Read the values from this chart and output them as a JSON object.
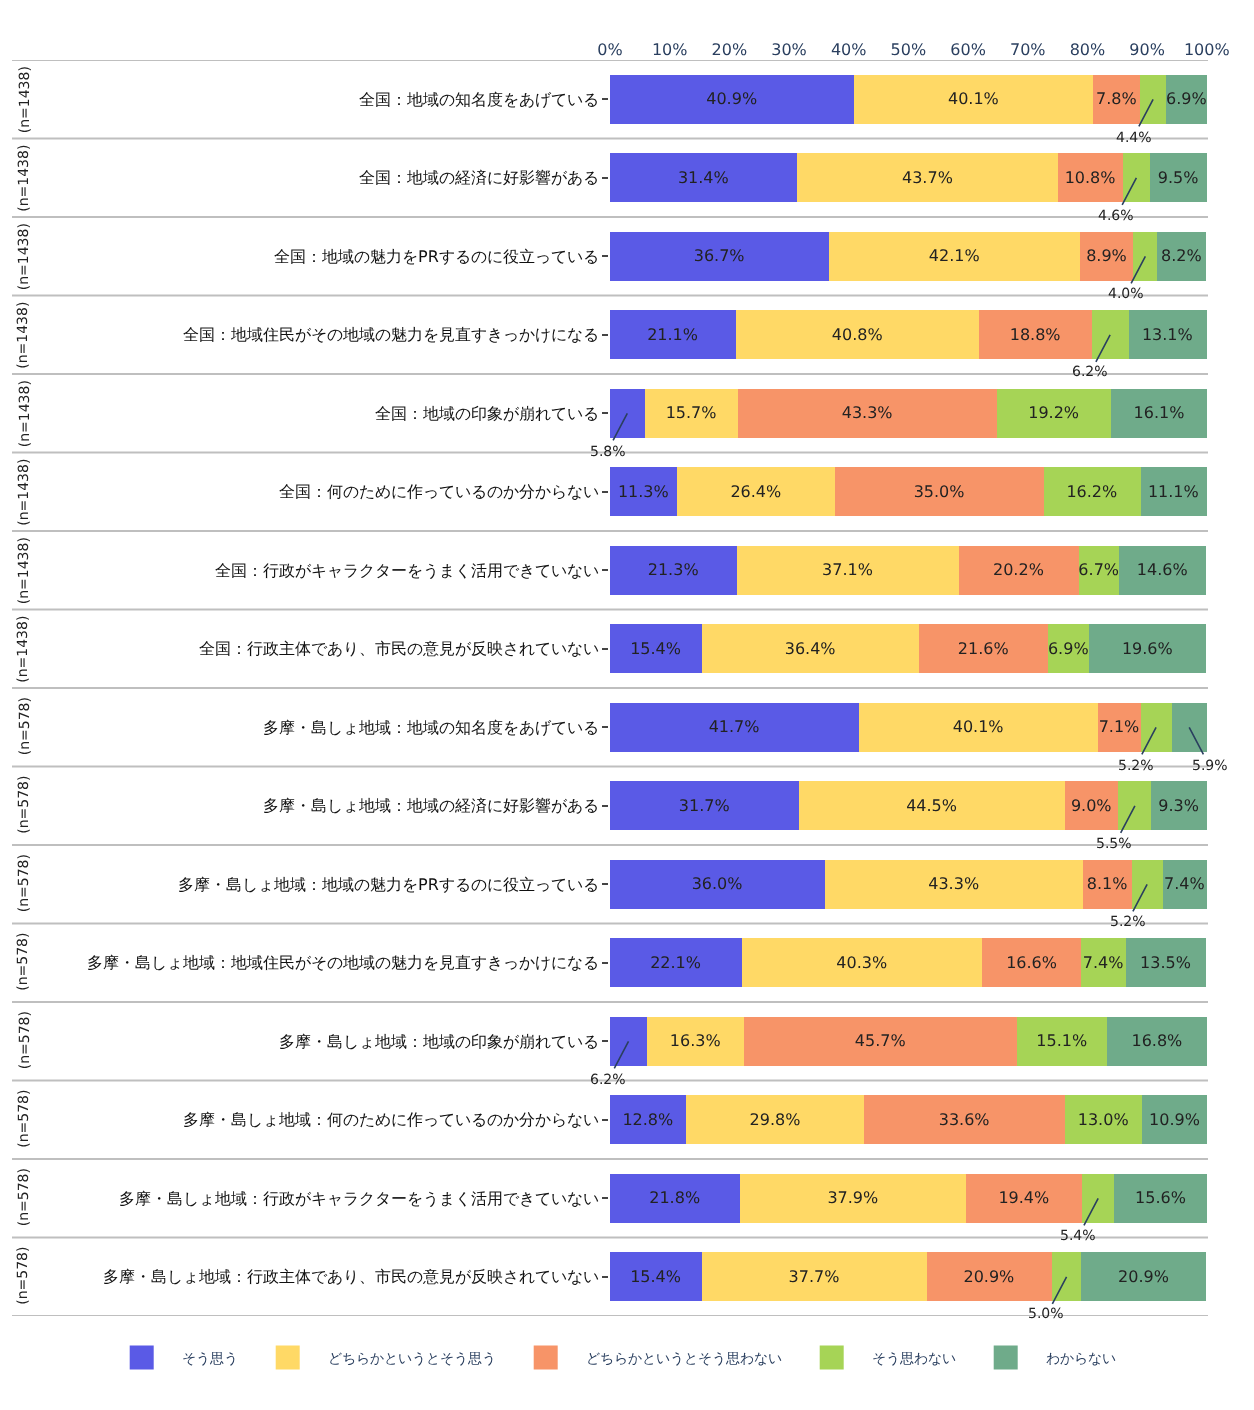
{
  "chart_data": {
    "type": "bar",
    "orientation": "horizontal",
    "stacked": true,
    "categories": [
      "全国：地域の知名度をあげている",
      "全国：地域の経済に好影響がある",
      "全国：地域の魅力をPRするのに役立っている",
      "全国：地域住民がその地域の魅力を見直すきっかけになる",
      "全国：地域の印象が崩れている",
      "全国：何のために作っているのか分からない",
      "全国：行政がキャラクターをうまく活用できていない",
      "全国：行政主体であり、市民の意見が反映されていない",
      "多摩・島しょ地域：地域の知名度をあげている",
      "多摩・島しょ地域：地域の経済に好影響がある",
      "多摩・島しょ地域：地域の魅力をPRするのに役立っている",
      "多摩・島しょ地域：地域住民がその地域の魅力を見直すきっかけになる",
      "多摩・島しょ地域：地域の印象が崩れている",
      "多摩・島しょ地域：何のために作っているのか分からない",
      "多摩・島しょ地域：行政がキャラクターをうまく活用できていない",
      "多摩・島しょ地域：行政主体であり、市民の意見が反映されていない"
    ],
    "series": [
      {
        "name": "そう思う",
        "color": "#5a5ae6",
        "values": [
          40.9,
          31.4,
          36.7,
          21.1,
          5.8,
          11.3,
          21.3,
          15.4,
          41.7,
          31.7,
          36.0,
          22.1,
          6.2,
          12.8,
          21.8,
          15.4
        ],
        "value_labels": [
          "40.9%",
          "31.4%",
          "36.7%",
          "21.1%",
          "5.8%",
          "11.3%",
          "21.3%",
          "15.4%",
          "41.7%",
          "31.7%",
          "36.0%",
          "22.1%",
          "6.2%",
          "12.8%",
          "21.8%",
          "15.4%"
        ]
      },
      {
        "name": "どちらかというとそう思う",
        "color": "#ffd966",
        "values": [
          40.1,
          43.7,
          42.1,
          40.8,
          15.7,
          26.4,
          37.1,
          36.4,
          40.1,
          44.5,
          43.3,
          40.3,
          16.3,
          29.8,
          37.9,
          37.7
        ],
        "value_labels": [
          "40.1%",
          "43.7%",
          "42.1%",
          "40.8%",
          "15.7%",
          "26.4%",
          "37.1%",
          "36.4%",
          "40.1%",
          "44.5%",
          "43.3%",
          "40.3%",
          "16.3%",
          "29.8%",
          "37.9%",
          "37.7%"
        ]
      },
      {
        "name": "どちらかというとそう思わない",
        "color": "#f79468",
        "values": [
          7.8,
          10.8,
          8.9,
          18.8,
          43.3,
          35.0,
          20.2,
          21.6,
          7.1,
          9.0,
          8.1,
          16.6,
          45.7,
          33.6,
          19.4,
          20.9
        ],
        "value_labels": [
          "7.8%",
          "10.8%",
          "8.9%",
          "18.8%",
          "43.3%",
          "35.0%",
          "20.2%",
          "21.6%",
          "7.1%",
          "9.0%",
          "8.1%",
          "16.6%",
          "45.7%",
          "33.6%",
          "19.4%",
          "20.9%"
        ]
      },
      {
        "name": "そう思わない",
        "color": "#a6d456",
        "values": [
          4.4,
          4.6,
          4.0,
          6.2,
          19.2,
          16.2,
          6.7,
          6.9,
          5.2,
          5.5,
          5.2,
          7.4,
          15.1,
          13.0,
          5.4,
          5.0
        ],
        "value_labels": [
          "4.4%",
          "4.6%",
          "4.0%",
          "6.2%",
          "19.2%",
          "16.2%",
          "6.7%",
          "6.9%",
          "5.2%",
          "5.5%",
          "5.2%",
          "7.4%",
          "15.1%",
          "13.0%",
          "5.4%",
          "5.0%"
        ]
      },
      {
        "name": "わからない",
        "color": "#6fab8a",
        "values": [
          6.9,
          9.5,
          8.2,
          13.1,
          16.1,
          11.1,
          14.6,
          19.6,
          5.9,
          9.3,
          7.4,
          13.5,
          16.8,
          10.9,
          15.6,
          20.9
        ],
        "value_labels": [
          "6.9%",
          "9.5%",
          "8.2%",
          "13.1%",
          "16.1%",
          "11.1%",
          "14.6%",
          "19.6%",
          "5.9%",
          "9.3%",
          "7.4%",
          "13.5%",
          "16.8%",
          "10.9%",
          "15.6%",
          "20.9%"
        ]
      }
    ],
    "xlim": [
      0,
      100.2
    ],
    "xticks": [
      {
        "value": 0,
        "label": "0%"
      },
      {
        "value": 10,
        "label": "10%"
      },
      {
        "value": 20,
        "label": "20%"
      },
      {
        "value": 30,
        "label": "30%"
      },
      {
        "value": 40,
        "label": "40%"
      },
      {
        "value": 50,
        "label": "50%"
      },
      {
        "value": 60,
        "label": "60%"
      },
      {
        "value": 70,
        "label": "70%"
      },
      {
        "value": 80,
        "label": "80%"
      },
      {
        "value": 90,
        "label": "90%"
      },
      {
        "value": 100,
        "label": "100%"
      }
    ],
    "annotations": [
      "(n=1438)",
      "(n=1438)",
      "(n=1438)",
      "(n=1438)",
      "(n=1438)",
      "(n=1438)",
      "(n=1438)",
      "(n=1438)",
      "(n=578)",
      "(n=578)",
      "(n=578)",
      "(n=578)",
      "(n=578)",
      "(n=578)",
      "(n=578)",
      "(n=578)"
    ],
    "grid": "y",
    "legend": "bottom"
  }
}
